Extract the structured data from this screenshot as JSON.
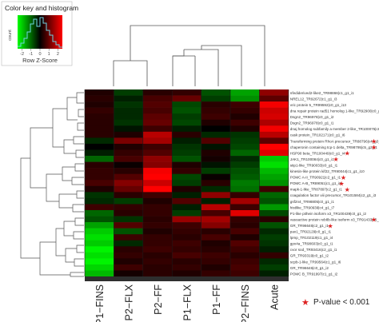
{
  "chart_data": {
    "type": "heatmap",
    "title": "",
    "xlabel": "",
    "ylabel": "",
    "columns": [
      "P1−FINS",
      "P2−FLX",
      "P2−FF",
      "P1−FLX",
      "P1−FF",
      "P2−FINS",
      "Acute"
    ],
    "rows": [
      "nfediderived2-like2_TR98866|c1_g1_i1",
      "NREL12_TR92672|c1_g1_i3",
      "vric protein 5_TR99592|c0_g1_i13",
      "dna repair protein rad51 homolog 1-like_TR92900|c0_g1_i10",
      "Dsgn2_TR96978|c0_g1_i2",
      "Dsgn2_TR96978|c0_g1_i1",
      "dnaj homolog subfamily a member 2-like_TR100075|c6_g1_i20",
      "cask protein_TR102171|c0_g1_i6",
      "Transforming protein RhoA precursor_TR88796|c4_g3_i2",
      "chaperonin containing tcp-1 delta_TR98795|c5_g2_i1",
      "HSP90 beta_TR100449|c0_g1_i4",
      "JAK1_TR100084|c0_g1_i1",
      "stip1-like_TR90033|c0_g1_i1",
      "kinesin-like protein kif22_TR90044|c1_g1_i10",
      "POMC A-II_TR90921|c2_g1_i1",
      "POMC A-B_TR89051|c1_g1_i2",
      "mapk-1-like_TR87897|c2_g1_i1",
      "coagulation factor viii precursor_TR101584|c2_g1_i3",
      "gsf2n4_TR98805|c0_g1_i1",
      "histlike_TR90939|c4_g1_i7",
      "P1-like pithein isoform x3_TR100439|c0_g1_i2",
      "vasoactive protein reb8b-like isoform x3_TR91433|c5_g3_i2",
      "GR_TR96646|c2_g1_i1",
      "pax1_TR92129|c0_g1_i1",
      "lpmp_TR102119|c1_g1_i4",
      "gpx4a_TR98603|c0_g1_i1",
      "cvor sod_TR93416|c2_g1_i1",
      "GR_TR93319|c0_g1_i2",
      "scpb-1-like_TR99564|c1_g1_i6",
      "GR_TR96646|c0_g1_i2",
      "POMC B_TR91997|c1_g1_i2"
    ],
    "values": [
      [
        0.3,
        -0.6,
        0.4,
        0.5,
        -0.8,
        -1.6,
        1.4
      ],
      [
        0.4,
        -0.3,
        0.7,
        1.0,
        -0.6,
        -1.4,
        0.9
      ],
      [
        0.3,
        -0.5,
        0.8,
        -0.7,
        0.4,
        0.6,
        2.4
      ],
      [
        0.5,
        -0.4,
        0.7,
        -0.8,
        0.5,
        0.5,
        2.0
      ],
      [
        0.4,
        -0.4,
        0.9,
        -0.6,
        0.6,
        0.3,
        2.1
      ],
      [
        0.4,
        -0.5,
        1.0,
        -0.7,
        0.3,
        0.6,
        1.7
      ],
      [
        0.4,
        -0.2,
        0.6,
        -0.3,
        0.0,
        0.3,
        2.4
      ],
      [
        0.4,
        0.3,
        1.8,
        0.4,
        -0.4,
        -0.5,
        1.8
      ],
      [
        -0.4,
        1.2,
        1.6,
        -0.3,
        0.8,
        -0.6,
        0.9
      ],
      [
        0.0,
        0.3,
        0.6,
        -0.5,
        -0.2,
        -0.7,
        2.6
      ],
      [
        -0.3,
        0.5,
        0.8,
        -0.6,
        0.3,
        -1.0,
        2.2
      ],
      [
        -1.0,
        0.7,
        1.4,
        -0.8,
        0.2,
        -0.4,
        -2.0
      ],
      [
        0.4,
        0.1,
        1.3,
        0.3,
        -0.2,
        -0.6,
        -2.2
      ],
      [
        0.5,
        0.4,
        2.4,
        0.5,
        -0.6,
        -0.8,
        -1.8
      ],
      [
        0.5,
        0.8,
        2.5,
        -0.7,
        0.1,
        -0.9,
        -1.6
      ],
      [
        0.7,
        1.3,
        2.0,
        -0.6,
        0.4,
        -1.2,
        -1.4
      ],
      [
        0.3,
        1.0,
        2.6,
        0.3,
        -0.4,
        -1.1,
        0.6
      ],
      [
        -0.5,
        0.4,
        0.6,
        -0.3,
        1.4,
        0.5,
        -1.0
      ],
      [
        -0.4,
        -0.6,
        0.3,
        0.8,
        -0.3,
        1.6,
        -0.8
      ],
      [
        0.6,
        0.5,
        0.5,
        -0.3,
        1.8,
        0.6,
        -1.5
      ],
      [
        -1.0,
        0.4,
        0.5,
        -0.6,
        0.7,
        2.2,
        -0.7
      ],
      [
        -0.8,
        -0.5,
        0.4,
        1.5,
        1.6,
        0.5,
        0.4
      ],
      [
        -1.6,
        0.8,
        0.5,
        0.6,
        1.3,
        0.4,
        -0.8
      ],
      [
        -2.0,
        -0.8,
        0.3,
        0.5,
        0.4,
        0.7,
        -0.4
      ],
      [
        -2.2,
        0.6,
        0.5,
        0.4,
        0.7,
        0.3,
        -0.6
      ],
      [
        -2.0,
        -0.4,
        0.5,
        0.6,
        0.3,
        0.8,
        -0.5
      ],
      [
        -2.4,
        0.4,
        0.6,
        0.5,
        0.4,
        0.6,
        -0.3
      ],
      [
        -2.2,
        0.5,
        0.4,
        0.7,
        0.6,
        0.4,
        0.5
      ],
      [
        -2.4,
        0.3,
        0.5,
        0.4,
        0.5,
        0.6,
        -0.4
      ],
      [
        -2.1,
        0.6,
        0.4,
        0.5,
        0.3,
        0.7,
        -0.6
      ],
      [
        -1.8,
        0.2,
        0.4,
        0.3,
        0.5,
        0.6,
        -0.3
      ]
    ],
    "significant_rows": [
      8,
      9,
      10,
      11,
      14,
      15,
      16,
      21,
      22
    ],
    "color_key": {
      "title": "Color key and histogram",
      "xlabel": "Row Z-Score",
      "ylabel": "count",
      "ticks": [
        "-2",
        "-1",
        "0",
        "1",
        "2"
      ],
      "range": [
        -2.5,
        2.5
      ],
      "low_color": "#00ff00",
      "mid_color": "#000000",
      "high_color": "#ff0000"
    },
    "legend": {
      "marker": "★",
      "label": "P-value < 0.001",
      "color": "#dd2222",
      "placement": "bottom-right"
    }
  }
}
